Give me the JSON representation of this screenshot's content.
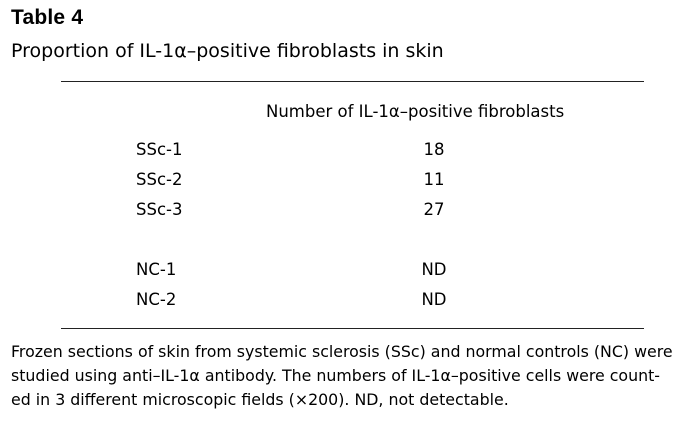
{
  "table": {
    "title": "Table 4",
    "subtitle": "Proportion of IL-1α–positive fibroblasts in skin",
    "column_header": "Number of IL-1α–positive fibroblasts",
    "rows": [
      {
        "label": "SSc-1",
        "value": "18"
      },
      {
        "label": "SSc-2",
        "value": "11"
      },
      {
        "label": "SSc-3",
        "value": "27"
      },
      {
        "label": "NC-1",
        "value": "ND"
      },
      {
        "label": "NC-2",
        "value": "ND"
      }
    ]
  },
  "footnote": {
    "lines": [
      "Frozen sections of skin from systemic sclerosis (SSc) and normal controls (NC) were",
      "studied using anti–IL-1α antibody. The numbers of IL-1α–positive cells were count-",
      "ed in 3 different microscopic fields (×200). ND, not detectable."
    ]
  }
}
